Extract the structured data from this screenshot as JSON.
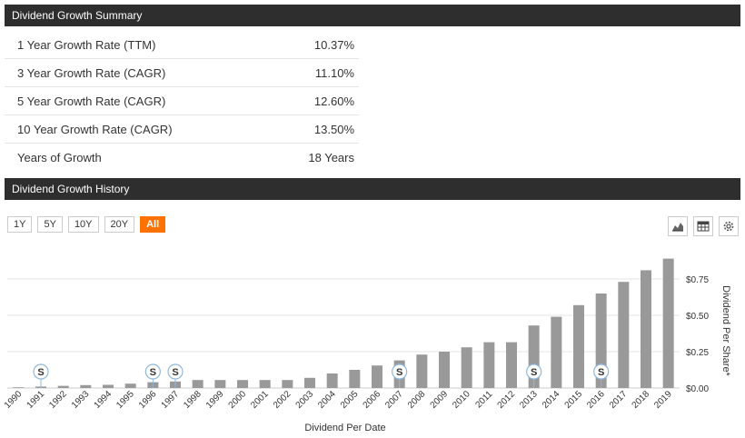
{
  "summary": {
    "title": "Dividend Growth Summary",
    "rows": [
      {
        "label": "1 Year Growth Rate (TTM)",
        "value": "10.37%"
      },
      {
        "label": "3 Year Growth Rate (CAGR)",
        "value": "11.10%"
      },
      {
        "label": "5 Year Growth Rate (CAGR)",
        "value": "12.60%"
      },
      {
        "label": "10 Year Growth Rate (CAGR)",
        "value": "13.50%"
      },
      {
        "label": "Years of Growth",
        "value": "18 Years"
      }
    ]
  },
  "history": {
    "title": "Dividend Growth History",
    "ranges": [
      "1Y",
      "5Y",
      "10Y",
      "20Y",
      "All"
    ],
    "active_range": "All",
    "tools": [
      "area-chart-icon",
      "table-icon",
      "gear-icon"
    ],
    "split_marker_label": "S"
  },
  "chart_data": {
    "type": "bar",
    "xlabel": "Dividend Per Date",
    "ylabel": "Dividend Per Share*",
    "ylim": [
      0,
      0.9
    ],
    "yticks": [
      0,
      0.25,
      0.5,
      0.75
    ],
    "ytick_labels": [
      "$0.00",
      "$0.25",
      "$0.50",
      "$0.75"
    ],
    "grid": true,
    "categories": [
      "1990",
      "1991",
      "1992",
      "1993",
      "1994",
      "1995",
      "1996",
      "1997",
      "1998",
      "1999",
      "2000",
      "2001",
      "2002",
      "2003",
      "2004",
      "2005",
      "2006",
      "2007",
      "2008",
      "2009",
      "2010",
      "2011",
      "2012",
      "2013",
      "2014",
      "2015",
      "2016",
      "2017",
      "2018",
      "2019"
    ],
    "values": [
      0.005,
      0.01,
      0.015,
      0.02,
      0.022,
      0.03,
      0.04,
      0.045,
      0.055,
      0.055,
      0.055,
      0.055,
      0.055,
      0.07,
      0.1,
      0.125,
      0.155,
      0.19,
      0.23,
      0.25,
      0.28,
      0.315,
      0.315,
      0.43,
      0.49,
      0.57,
      0.65,
      0.73,
      0.81,
      0.89
    ],
    "splits": [
      "1991",
      "1996",
      "1997",
      "2007",
      "2013",
      "2016"
    ],
    "color": "#999999"
  }
}
